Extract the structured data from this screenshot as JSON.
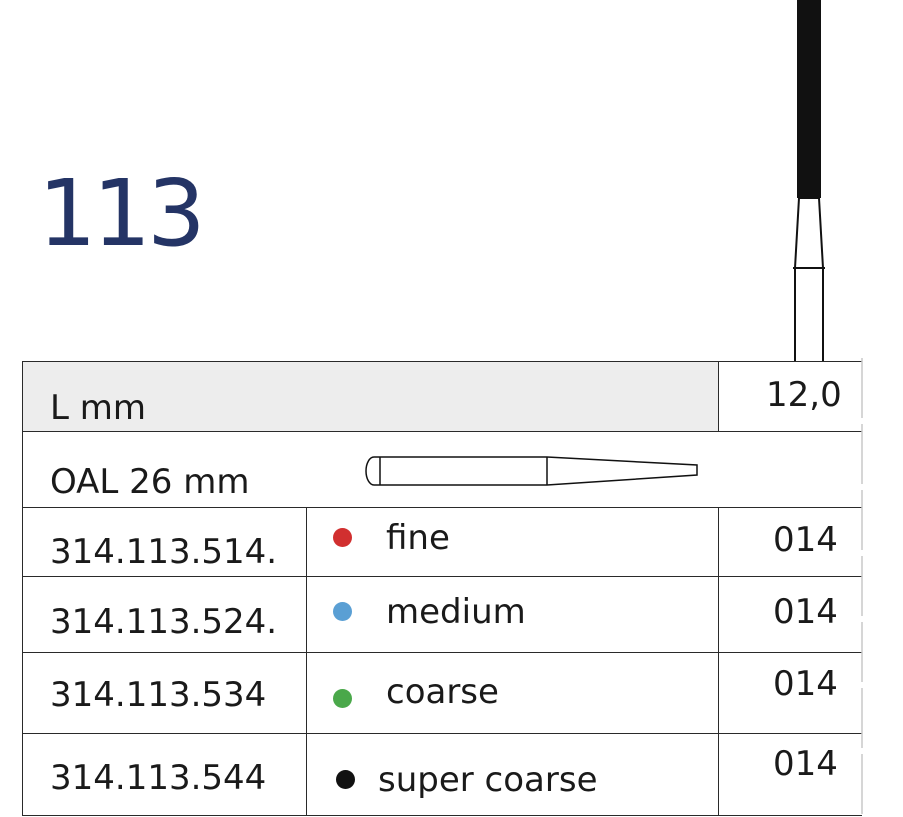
{
  "title": "113",
  "rows": {
    "length_label": "L mm",
    "length_value": "12,0",
    "oal_label": "OAL 26 mm"
  },
  "products": [
    {
      "code": "314.113.514.",
      "grade": "fine",
      "dot_color": "#d12f2f",
      "size": "014"
    },
    {
      "code": "314.113.524.",
      "grade": "medium",
      "dot_color": "#5a9fd4",
      "size": "014"
    },
    {
      "code": "314.113.534",
      "grade": "coarse",
      "dot_color": "#4aa84a",
      "size": "014"
    },
    {
      "code": "314.113.544",
      "grade": "super coarse",
      "dot_color": "#111111",
      "size": "014"
    }
  ],
  "colors": {
    "title": "#243465",
    "header_background": "#ededed"
  }
}
